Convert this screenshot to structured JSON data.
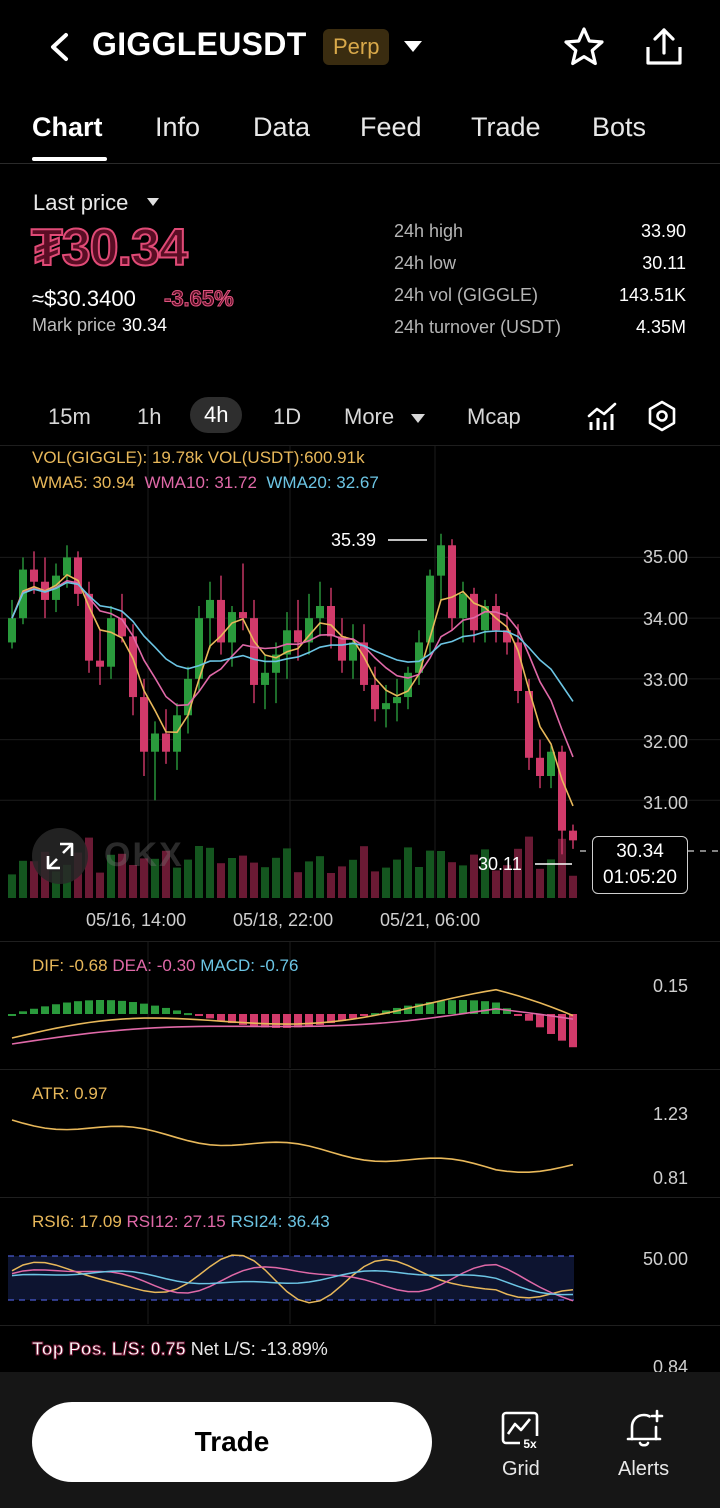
{
  "header": {
    "symbol": "GIGGLEUSDT",
    "badge": "Perp"
  },
  "tabs": [
    "Chart",
    "Info",
    "Data",
    "Feed",
    "Trade",
    "Bots"
  ],
  "price": {
    "label": "Last price",
    "last": "₮30.34",
    "usd": "≈$30.3400",
    "change": "-3.65%",
    "mark_label": "Mark price",
    "mark_value": "30.34"
  },
  "stats": [
    {
      "label": "24h high",
      "value": "33.90"
    },
    {
      "label": "24h low",
      "value": "30.11"
    },
    {
      "label": "24h vol (GIGGLE)",
      "value": "143.51K"
    },
    {
      "label": "24h turnover (USDT)",
      "value": "4.35M"
    }
  ],
  "intervals": {
    "items": [
      "15m",
      "1h",
      "4h",
      "1D"
    ],
    "more": "More",
    "mcap": "Mcap",
    "active": "4h"
  },
  "main_legend": {
    "vol_giggle": "VOL(GIGGLE): 19.78k",
    "vol_usdt": "VOL(USDT):600.91k",
    "wma5": "WMA5: 30.94",
    "wma10": "WMA10: 31.72",
    "wma20": "WMA20: 32.67"
  },
  "markers": {
    "high": "35.39",
    "low": "30.11",
    "current_price": "30.34",
    "countdown": "01:05:20"
  },
  "watermark": "OKX",
  "macd_legend": {
    "dif": "DIF: -0.68",
    "dea": "DEA: -0.30",
    "macd": "MACD: -0.76",
    "tick": "0.15"
  },
  "atr_legend": {
    "atr": "ATR: 0.97",
    "ticks": [
      "1.23",
      "0.81"
    ]
  },
  "rsi_legend": {
    "rsi6": "RSI6: 17.09",
    "rsi12": "RSI12: 27.15",
    "rsi24": "RSI24: 36.43",
    "tick": "50.00"
  },
  "ls_legend": {
    "top_pos": "Top Pos. L/S: 0.75",
    "net": "Net L/S: -13.89%",
    "tick": "0.84"
  },
  "bottom": {
    "trade": "Trade",
    "grid": "Grid",
    "grid_badge": "5x",
    "alerts": "Alerts"
  },
  "colors": {
    "up": "#2a9a3c",
    "down": "#d13a6a",
    "wma5": "#e8b85a",
    "wma10": "#e069a8",
    "wma20": "#6cc5e4"
  },
  "chart_data": {
    "type": "candlestick",
    "y_ticks": [
      "35.00",
      "34.00",
      "33.00",
      "32.00",
      "31.00"
    ],
    "x_ticks": [
      "05/16, 14:00",
      "05/18, 22:00",
      "05/21, 06:00"
    ],
    "ylim": [
      30.0,
      35.6
    ],
    "candles": [
      [
        33.6,
        34.3,
        33.5,
        34.0
      ],
      [
        34.0,
        35.0,
        33.9,
        34.8
      ],
      [
        34.8,
        35.1,
        34.4,
        34.6
      ],
      [
        34.6,
        35.0,
        34.0,
        34.3
      ],
      [
        34.3,
        34.9,
        34.1,
        34.7
      ],
      [
        34.7,
        35.2,
        34.5,
        35.0
      ],
      [
        35.0,
        35.1,
        34.2,
        34.4
      ],
      [
        34.4,
        34.6,
        33.1,
        33.3
      ],
      [
        33.3,
        33.8,
        32.9,
        33.2
      ],
      [
        33.2,
        34.2,
        33.0,
        34.0
      ],
      [
        34.0,
        34.4,
        33.6,
        33.7
      ],
      [
        33.7,
        33.9,
        32.4,
        32.7
      ],
      [
        32.7,
        33.0,
        31.4,
        31.8
      ],
      [
        31.8,
        32.3,
        31.0,
        32.1
      ],
      [
        32.1,
        32.5,
        31.6,
        31.8
      ],
      [
        31.8,
        32.6,
        31.5,
        32.4
      ],
      [
        32.4,
        33.2,
        32.1,
        33.0
      ],
      [
        33.0,
        34.2,
        32.8,
        34.0
      ],
      [
        34.0,
        34.6,
        33.5,
        34.3
      ],
      [
        34.3,
        34.7,
        33.4,
        33.6
      ],
      [
        33.6,
        34.2,
        33.2,
        34.1
      ],
      [
        34.1,
        34.9,
        33.8,
        34.0
      ],
      [
        34.0,
        34.3,
        32.6,
        32.9
      ],
      [
        32.9,
        33.4,
        32.5,
        33.1
      ],
      [
        33.1,
        33.6,
        32.6,
        33.4
      ],
      [
        33.4,
        34.1,
        33.0,
        33.8
      ],
      [
        33.8,
        34.3,
        33.3,
        33.6
      ],
      [
        33.6,
        34.4,
        33.4,
        34.0
      ],
      [
        34.0,
        34.6,
        33.7,
        34.2
      ],
      [
        34.2,
        34.5,
        33.5,
        33.7
      ],
      [
        33.7,
        34.0,
        33.1,
        33.3
      ],
      [
        33.3,
        33.9,
        33.0,
        33.6
      ],
      [
        33.6,
        33.9,
        32.8,
        32.9
      ],
      [
        32.9,
        33.2,
        32.3,
        32.5
      ],
      [
        32.5,
        32.9,
        32.2,
        32.6
      ],
      [
        32.6,
        33.0,
        32.3,
        32.7
      ],
      [
        32.7,
        33.2,
        32.5,
        33.1
      ],
      [
        33.1,
        33.8,
        32.9,
        33.6
      ],
      [
        33.6,
        34.8,
        33.4,
        34.7
      ],
      [
        34.7,
        35.39,
        34.3,
        35.2
      ],
      [
        35.2,
        35.3,
        33.8,
        34.0
      ],
      [
        34.0,
        34.6,
        33.6,
        34.4
      ],
      [
        34.4,
        34.5,
        33.6,
        33.8
      ],
      [
        33.8,
        34.3,
        33.6,
        34.2
      ],
      [
        34.2,
        34.4,
        33.6,
        33.8
      ],
      [
        33.8,
        34.1,
        33.4,
        33.6
      ],
      [
        33.6,
        33.9,
        32.6,
        32.8
      ],
      [
        32.8,
        33.0,
        31.5,
        31.7
      ],
      [
        31.7,
        32.0,
        31.2,
        31.4
      ],
      [
        31.4,
        31.9,
        31.2,
        31.8
      ],
      [
        31.8,
        31.9,
        30.11,
        30.5
      ],
      [
        30.5,
        30.6,
        30.2,
        30.34
      ]
    ],
    "volume_up_down_pattern": "derived from candle direction"
  }
}
